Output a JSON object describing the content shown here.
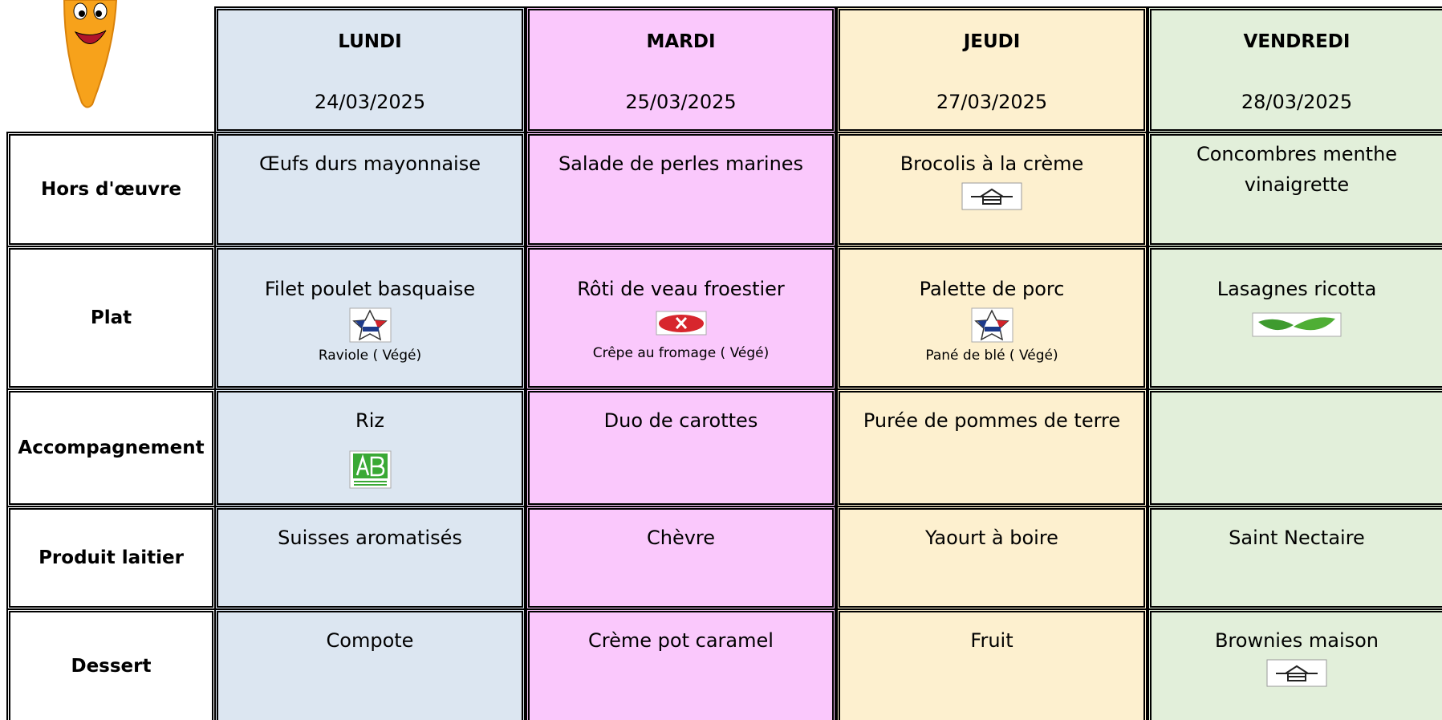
{
  "header": {
    "days": [
      {
        "name": "LUNDI",
        "date": "24/03/2025"
      },
      {
        "name": "MARDI",
        "date": "25/03/2025"
      },
      {
        "name": "JEUDI",
        "date": "27/03/2025"
      },
      {
        "name": "VENDREDI",
        "date": "28/03/2025"
      }
    ]
  },
  "rows": [
    {
      "label": "Hors d'œuvre",
      "cells": [
        {
          "main": "Œufs durs mayonnaise"
        },
        {
          "main": "Salade de perles marines"
        },
        {
          "main": "Brocolis à la crème"
        },
        {
          "main": "Concombres menthe vinaigrette"
        }
      ]
    },
    {
      "label": "Plat",
      "cells": [
        {
          "main": "Filet poulet basquaise",
          "sub": "Raviole ( Végé)"
        },
        {
          "main": "Rôti de veau froestier",
          "sub": "Crêpe au fromage ( Végé)"
        },
        {
          "main": "Palette de porc",
          "sub": "Pané de blé ( Végé)"
        },
        {
          "main": "Lasagnes ricotta"
        }
      ]
    },
    {
      "label": "Accompagnement",
      "cells": [
        {
          "main": "Riz"
        },
        {
          "main": "Duo de carottes"
        },
        {
          "main": "Purée de pommes de terre"
        }
      ]
    },
    {
      "label": "Produit laitier",
      "cells": [
        {
          "main": "Suisses aromatisés"
        },
        {
          "main": "Chèvre"
        },
        {
          "main": "Yaourt à boire"
        },
        {
          "main": "Saint Nectaire"
        }
      ]
    },
    {
      "label": "Dessert",
      "cells": [
        {
          "main": "Compote"
        },
        {
          "main": "Crème pot caramel"
        },
        {
          "main": "Fruit"
        },
        {
          "main": "Brownies maison"
        }
      ]
    }
  ]
}
